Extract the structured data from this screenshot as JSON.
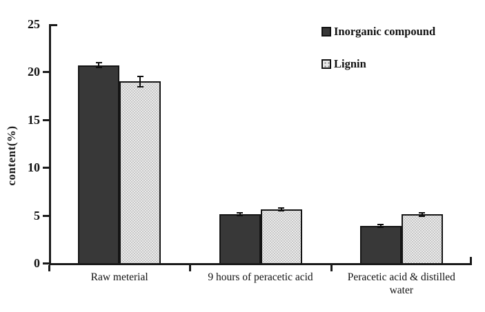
{
  "figure": {
    "background": "#ffffff"
  },
  "colors": {
    "axis": "#1a1a1a",
    "bar_inorganic": "#383838",
    "bar_lignin": "#eaeaea",
    "error_bar": "#0d0d0d"
  },
  "chart_data": {
    "type": "bar",
    "title": "",
    "xlabel": "",
    "ylabel": "content(%)",
    "ylim": [
      0,
      25
    ],
    "yticks": [
      0,
      5,
      10,
      15,
      20,
      25
    ],
    "grid": false,
    "legend_position": "top-right",
    "categories": [
      "Raw meterial",
      "9 hours of peracetic acid",
      "Peracetic acid  & distilled\nwater"
    ],
    "series": [
      {
        "name": "Inorganic compound",
        "pattern": "solid",
        "color": "#383838",
        "values": [
          20.7,
          5.1,
          3.9
        ],
        "errors": [
          0.25,
          0.12,
          0.12
        ]
      },
      {
        "name": "Lignin",
        "pattern": "dots",
        "color": "#eaeaea",
        "values": [
          19.0,
          5.6,
          5.1
        ],
        "errors": [
          0.55,
          0.12,
          0.18
        ]
      }
    ]
  }
}
